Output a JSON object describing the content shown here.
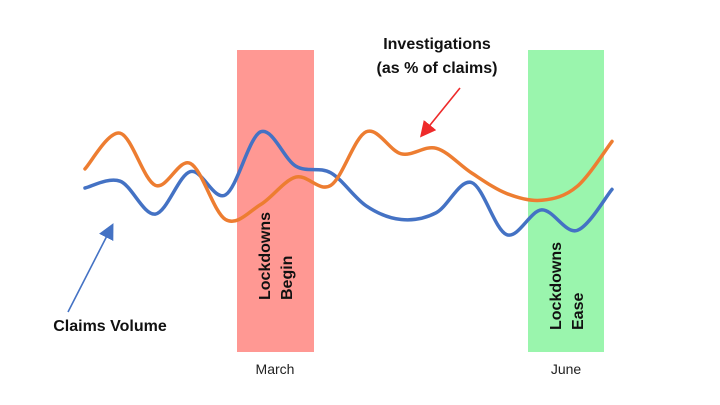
{
  "chart_data": {
    "type": "line",
    "title": "",
    "xlabel": "",
    "ylabel": "",
    "grid": false,
    "legend": "none",
    "x_ticks": [
      "March",
      "June"
    ],
    "series": [
      {
        "name": "Claims Volume",
        "color": "#4472C4",
        "values": [
          0.54,
          0.59,
          0.35,
          0.66,
          0.49,
          0.95,
          0.7,
          0.65,
          0.41,
          0.31,
          0.36,
          0.58,
          0.2,
          0.38,
          0.23,
          0.53
        ]
      },
      {
        "name": "Investigations (as % of claims)",
        "color": "#ED7D31",
        "values": [
          0.68,
          0.94,
          0.56,
          0.72,
          0.31,
          0.42,
          0.62,
          0.56,
          0.95,
          0.79,
          0.83,
          0.65,
          0.5,
          0.45,
          0.55,
          0.88
        ]
      }
    ],
    "bands": [
      {
        "label": "Lockdowns Begin",
        "tick": "March",
        "color": "#FF9893"
      },
      {
        "label": "Lockdowns Ease",
        "tick": "June",
        "color": "#9AF5AD"
      }
    ],
    "annotations": {
      "investigations": [
        "Investigations",
        "(as % of claims)"
      ],
      "claims": "Claims Volume",
      "investigations_arrow_color": "#EE2A2A",
      "claims_arrow_color": "#4472C4"
    }
  }
}
